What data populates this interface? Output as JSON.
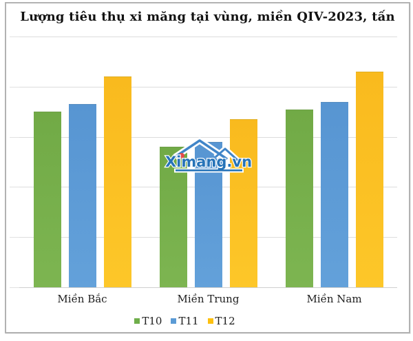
{
  "chart_data": {
    "type": "bar",
    "title": "Lượng tiêu thụ xi măng tại vùng, miền QIV-2023, tấn",
    "categories": [
      "Miền Bắc",
      "Miền Trung",
      "Miền Nam"
    ],
    "series": [
      {
        "name": "T10",
        "color": "#6fae4b",
        "color_top": "#71aa46",
        "color_bottom": "#7db551",
        "values": [
          3.5,
          2.8,
          3.55
        ]
      },
      {
        "name": "T11",
        "color": "#5b9bd5",
        "color_top": "#5795d2",
        "color_bottom": "#63a1da",
        "values": [
          3.65,
          2.9,
          3.7
        ]
      },
      {
        "name": "T12",
        "color": "#fdc010",
        "color_top": "#f9ba1e",
        "color_bottom": "#fdc729",
        "values": [
          4.2,
          3.35,
          4.3
        ]
      }
    ],
    "xlabel": "",
    "ylabel": "",
    "ylim": [
      0,
      5
    ],
    "gridline_interval": 1,
    "grid": "horizontal",
    "y_tick_labels": "cropped at left edge (illegible)",
    "legend_position": "bottom",
    "values_note": "bar values estimated in gridline units; numeric axis labels are cut off in the screenshot"
  },
  "watermark": {
    "text": "Ximang.vn",
    "text_color": "#2673b8",
    "outline_blue": "#4085c8",
    "accent_red": "#e34b4b"
  }
}
